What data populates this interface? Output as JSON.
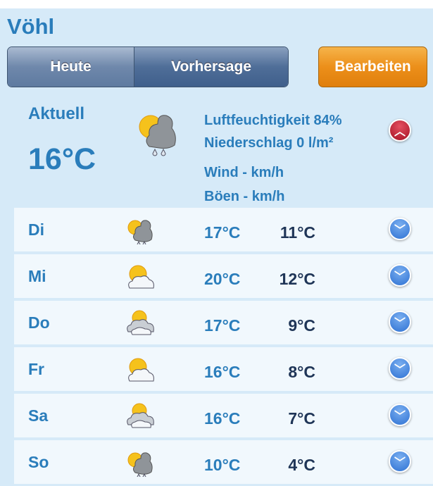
{
  "location": "Vöhl",
  "tabs": [
    {
      "label": "Heute",
      "selected": false
    },
    {
      "label": "Vorhersage",
      "selected": true
    }
  ],
  "edit_label": "Bearbeiten",
  "current": {
    "label": "Aktuell",
    "temp": "16°C",
    "icon": "sun-cloud-rain-icon",
    "humidity": "Luftfeuchtigkeit 84%",
    "precip": "Niederschlag 0 l/m²",
    "wind": "Wind - km/h",
    "gusts": "Böen - km/h"
  },
  "forecast": [
    {
      "day": "Di",
      "icon": "sun-cloud-rain-icon",
      "high": "17°C",
      "low": "11°C"
    },
    {
      "day": "Mi",
      "icon": "sun-cloud-icon",
      "high": "20°C",
      "low": "12°C"
    },
    {
      "day": "Do",
      "icon": "cloud-sun-icon",
      "high": "17°C",
      "low": "9°C"
    },
    {
      "day": "Fr",
      "icon": "sun-cloud-icon",
      "high": "16°C",
      "low": "8°C"
    },
    {
      "day": "Sa",
      "icon": "cloud-sun-icon",
      "high": "16°C",
      "low": "7°C"
    },
    {
      "day": "So",
      "icon": "sun-cloud-rain-icon",
      "high": "10°C",
      "low": "4°C"
    }
  ],
  "colors": {
    "accent": "#2a7dbb",
    "background": "#d6eaf8",
    "edit_button": "#ec8f1a"
  }
}
